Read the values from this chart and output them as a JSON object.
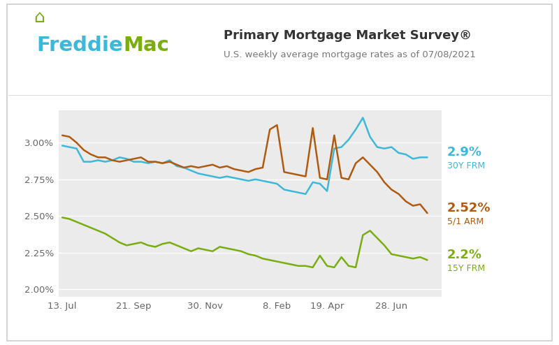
{
  "title": "Primary Mortgage Market Survey®",
  "subtitle": "U.S. weekly average mortgage rates as of 07/08/2021",
  "background_color": "#ffffff",
  "plot_bg_color": "#ebebeb",
  "border_color": "#cccccc",
  "colors": {
    "30Y_FRM": "#3eb8d8",
    "5_1_ARM": "#b05a10",
    "15Y_FRM": "#7aad10"
  },
  "label_30Y_val": "2.9%",
  "label_30Y_name": "30Y FRM",
  "label_51_val": "2.52%",
  "label_51_name": "5/1 ARM",
  "label_15Y_val": "2.2%",
  "label_15Y_name": "15Y FRM",
  "xtick_labels": [
    "13. Jul",
    "21. Sep",
    "30. Nov",
    "8. Feb",
    "19. Apr",
    "28. Jun"
  ],
  "xtick_positions": [
    0,
    10,
    20,
    30,
    37,
    46
  ],
  "ytick_vals": [
    2.0,
    2.25,
    2.5,
    2.75,
    3.0
  ],
  "ylim": [
    1.95,
    3.22
  ],
  "xlim": [
    -0.5,
    53
  ],
  "freddie_blue": "#3eb8d8",
  "freddie_green": "#7aad10",
  "freddie_text_dark": "#555555",
  "title_color": "#333333",
  "y_30Y": [
    2.98,
    2.97,
    2.96,
    2.87,
    2.87,
    2.88,
    2.87,
    2.88,
    2.9,
    2.89,
    2.87,
    2.87,
    2.86,
    2.87,
    2.86,
    2.88,
    2.84,
    2.83,
    2.81,
    2.79,
    2.78,
    2.77,
    2.76,
    2.77,
    2.76,
    2.75,
    2.74,
    2.75,
    2.74,
    2.73,
    2.72,
    2.68,
    2.67,
    2.66,
    2.65,
    2.73,
    2.72,
    2.67,
    2.96,
    2.97,
    3.02,
    3.09,
    3.17,
    3.04,
    2.97,
    2.96,
    2.97,
    2.93,
    2.92,
    2.89,
    2.9,
    2.9
  ],
  "y_5_1": [
    3.05,
    3.04,
    3.0,
    2.95,
    2.92,
    2.9,
    2.9,
    2.88,
    2.87,
    2.88,
    2.89,
    2.9,
    2.87,
    2.87,
    2.86,
    2.87,
    2.85,
    2.83,
    2.84,
    2.83,
    2.84,
    2.85,
    2.83,
    2.84,
    2.82,
    2.81,
    2.8,
    2.82,
    2.83,
    3.09,
    3.12,
    2.8,
    2.79,
    2.78,
    2.77,
    3.1,
    2.76,
    2.75,
    3.05,
    2.76,
    2.75,
    2.86,
    2.9,
    2.85,
    2.8,
    2.73,
    2.68,
    2.65,
    2.6,
    2.57,
    2.58,
    2.52
  ],
  "y_15Y": [
    2.49,
    2.48,
    2.46,
    2.44,
    2.42,
    2.4,
    2.38,
    2.35,
    2.32,
    2.3,
    2.31,
    2.32,
    2.3,
    2.29,
    2.31,
    2.32,
    2.3,
    2.28,
    2.26,
    2.28,
    2.27,
    2.26,
    2.29,
    2.28,
    2.27,
    2.26,
    2.24,
    2.23,
    2.21,
    2.2,
    2.19,
    2.18,
    2.17,
    2.16,
    2.16,
    2.15,
    2.23,
    2.16,
    2.15,
    2.22,
    2.16,
    2.15,
    2.37,
    2.4,
    2.35,
    2.3,
    2.24,
    2.23,
    2.22,
    2.21,
    2.22,
    2.2
  ]
}
